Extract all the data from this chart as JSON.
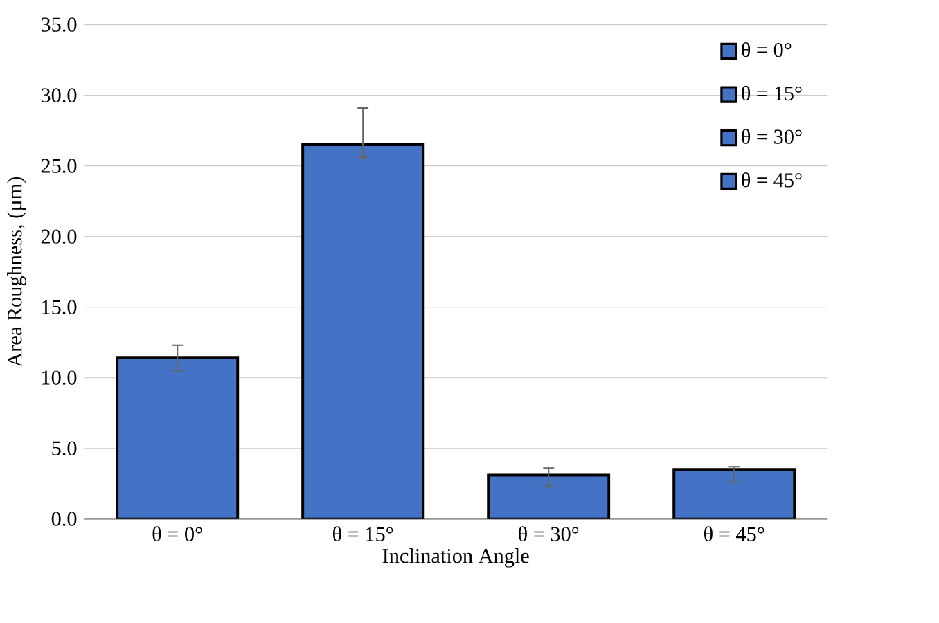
{
  "chart_data": {
    "type": "bar",
    "xlabel": "Inclination Angle",
    "ylabel": "Area Roughness, (µm)",
    "categories": [
      "θ = 0°",
      "θ = 15°",
      "θ = 30°",
      "θ = 45°"
    ],
    "series": [
      {
        "name": "θ = 0°",
        "color": "#4472c4",
        "values": [
          11.4,
          null,
          null,
          null
        ],
        "errors": [
          [
            10.5,
            12.3
          ],
          null,
          null,
          null
        ]
      },
      {
        "name": "θ = 15°",
        "color": "#4472c4",
        "values": [
          null,
          26.5,
          null,
          null
        ],
        "errors": [
          null,
          [
            25.6,
            29.1
          ],
          null,
          null
        ]
      },
      {
        "name": "θ = 30°",
        "color": "#4472c4",
        "values": [
          null,
          null,
          3.1,
          null
        ],
        "errors": [
          null,
          null,
          [
            2.3,
            3.6
          ],
          null
        ]
      },
      {
        "name": "θ = 45°",
        "color": "#4472c4",
        "values": [
          null,
          null,
          null,
          3.5
        ],
        "errors": [
          null,
          null,
          null,
          [
            2.6,
            3.7
          ]
        ]
      }
    ],
    "ylim": [
      0,
      35
    ],
    "yticks": [
      {
        "value": 0,
        "label": "0.0"
      },
      {
        "value": 5,
        "label": "5.0"
      },
      {
        "value": 10,
        "label": "10.0"
      },
      {
        "value": 15,
        "label": "15.0"
      },
      {
        "value": 20,
        "label": "20.0"
      },
      {
        "value": 25,
        "label": "25.0"
      },
      {
        "value": 30,
        "label": "30.0"
      },
      {
        "value": 35,
        "label": "35.0"
      }
    ],
    "grid": "y",
    "legend": "top right"
  }
}
